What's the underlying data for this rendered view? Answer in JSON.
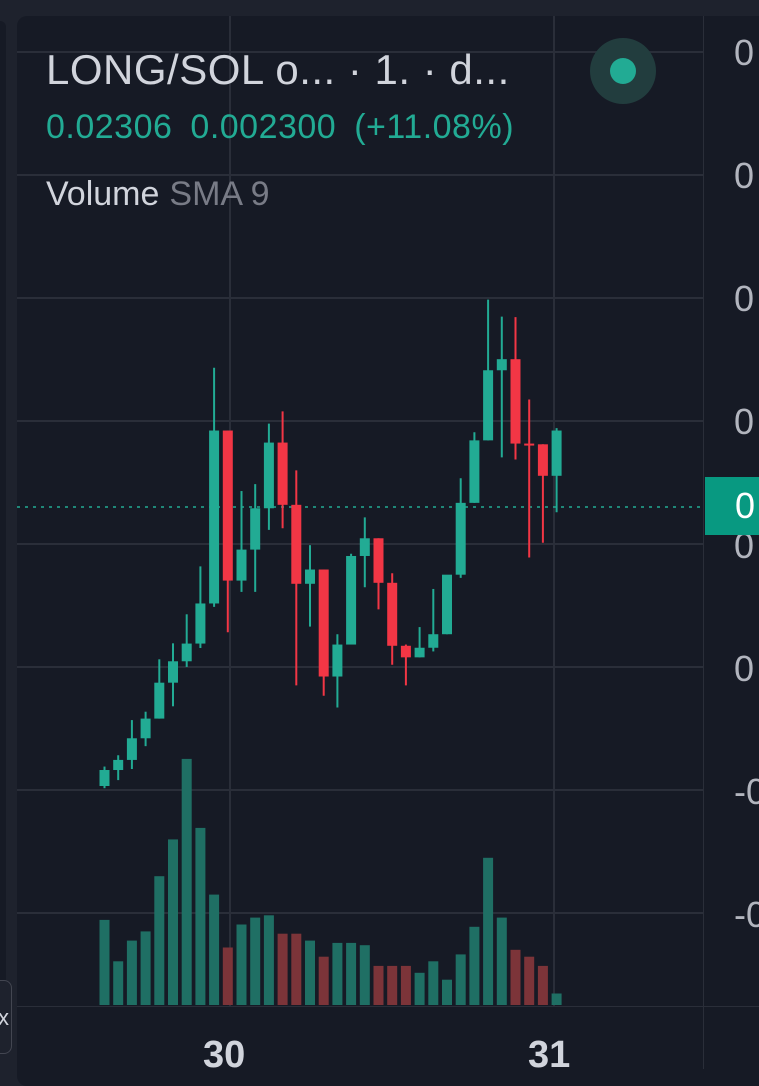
{
  "header": {
    "symbol_title": "LONG/SOL o...  · 1. · d...",
    "last_price": "0.02306",
    "change_abs": "0.002300",
    "change_pct": "(+11.08%)",
    "indicator_name": "Volume",
    "indicator_param": "SMA 9"
  },
  "price_axis": {
    "labels": [
      "0",
      "0",
      "0",
      "0",
      "0",
      "0",
      "-0",
      "-0"
    ],
    "last_price_tag": "0"
  },
  "time_axis": {
    "labels": [
      "30",
      "31"
    ]
  },
  "collapse_tab": {
    "icon": "x"
  },
  "colors": {
    "up": "#22ab94",
    "down": "#f23645",
    "volume_up": "#1f6f64",
    "volume_down": "#7c3439",
    "background": "#161a25",
    "grid": "#2a2e39"
  },
  "chart_data": {
    "type": "candlestick",
    "title": "LONG/SOL",
    "price_unit": "relative (axis labels truncated)",
    "candles": [
      {
        "o": 8.64,
        "h": 9.43,
        "l": 8.55,
        "c": 9.29
      },
      {
        "o": 9.29,
        "h": 9.89,
        "l": 8.88,
        "c": 9.7
      },
      {
        "o": 9.7,
        "h": 11.32,
        "l": 9.33,
        "c": 10.58
      },
      {
        "o": 10.58,
        "h": 11.66,
        "l": 10.26,
        "c": 11.38
      },
      {
        "o": 11.38,
        "h": 13.79,
        "l": 11.38,
        "c": 12.84
      },
      {
        "o": 12.84,
        "h": 14.44,
        "l": 11.88,
        "c": 13.71
      },
      {
        "o": 13.71,
        "h": 15.62,
        "l": 13.48,
        "c": 14.43
      },
      {
        "o": 14.43,
        "h": 17.57,
        "l": 14.25,
        "c": 16.06
      },
      {
        "o": 16.06,
        "h": 25.64,
        "l": 15.92,
        "c": 23.09
      },
      {
        "o": 23.09,
        "h": 23.09,
        "l": 14.89,
        "c": 16.99
      },
      {
        "o": 16.99,
        "h": 20.63,
        "l": 16.53,
        "c": 18.25
      },
      {
        "o": 18.25,
        "h": 20.91,
        "l": 16.53,
        "c": 19.93
      },
      {
        "o": 19.93,
        "h": 23.37,
        "l": 19.05,
        "c": 22.6
      },
      {
        "o": 22.6,
        "h": 23.87,
        "l": 19.12,
        "c": 20.07
      },
      {
        "o": 20.07,
        "h": 21.47,
        "l": 12.73,
        "c": 16.86
      },
      {
        "o": 16.86,
        "h": 18.43,
        "l": 15.12,
        "c": 17.44
      },
      {
        "o": 17.44,
        "h": 17.44,
        "l": 12.31,
        "c": 13.09
      },
      {
        "o": 13.09,
        "h": 14.81,
        "l": 11.83,
        "c": 14.39
      },
      {
        "o": 14.39,
        "h": 18.08,
        "l": 14.39,
        "c": 17.99
      },
      {
        "o": 17.99,
        "h": 19.56,
        "l": 16.72,
        "c": 18.71
      },
      {
        "o": 18.71,
        "h": 18.71,
        "l": 15.82,
        "c": 16.9
      },
      {
        "o": 16.9,
        "h": 17.29,
        "l": 13.57,
        "c": 14.34
      },
      {
        "o": 14.34,
        "h": 14.39,
        "l": 12.73,
        "c": 13.87
      },
      {
        "o": 13.87,
        "h": 15.1,
        "l": 13.87,
        "c": 14.26
      },
      {
        "o": 14.26,
        "h": 16.65,
        "l": 14.11,
        "c": 14.81
      },
      {
        "o": 14.81,
        "h": 17.08,
        "l": 14.81,
        "c": 17.23
      },
      {
        "o": 17.23,
        "h": 21.15,
        "l": 17.1,
        "c": 20.15
      },
      {
        "o": 20.15,
        "h": 23.02,
        "l": 20.15,
        "c": 22.69
      },
      {
        "o": 22.69,
        "h": 28.41,
        "l": 22.69,
        "c": 25.54
      },
      {
        "o": 25.54,
        "h": 27.72,
        "l": 22.0,
        "c": 25.99
      },
      {
        "o": 25.99,
        "h": 27.7,
        "l": 21.91,
        "c": 22.56
      },
      {
        "o": 22.56,
        "h": 24.35,
        "l": 17.93,
        "c": 22.53
      },
      {
        "o": 22.53,
        "h": 22.53,
        "l": 18.53,
        "c": 21.25
      },
      {
        "o": 21.25,
        "h": 23.19,
        "l": 19.77,
        "c": 23.09
      }
    ],
    "volumes": [
      3.7,
      1.9,
      2.8,
      3.2,
      5.6,
      7.2,
      10.7,
      7.7,
      4.8,
      2.5,
      3.5,
      3.8,
      3.9,
      3.1,
      3.1,
      2.8,
      2.1,
      2.7,
      2.7,
      2.6,
      1.7,
      1.7,
      1.7,
      1.4,
      1.9,
      1.1,
      2.2,
      3.4,
      6.4,
      3.8,
      2.4,
      2.1,
      1.7,
      0.5
    ],
    "last_price": 0.02306,
    "change": 0.0023,
    "change_pct": 11.08,
    "x_ticks": [
      "30",
      "31"
    ],
    "volume_indicator": "Volume SMA 9",
    "grid": true
  }
}
